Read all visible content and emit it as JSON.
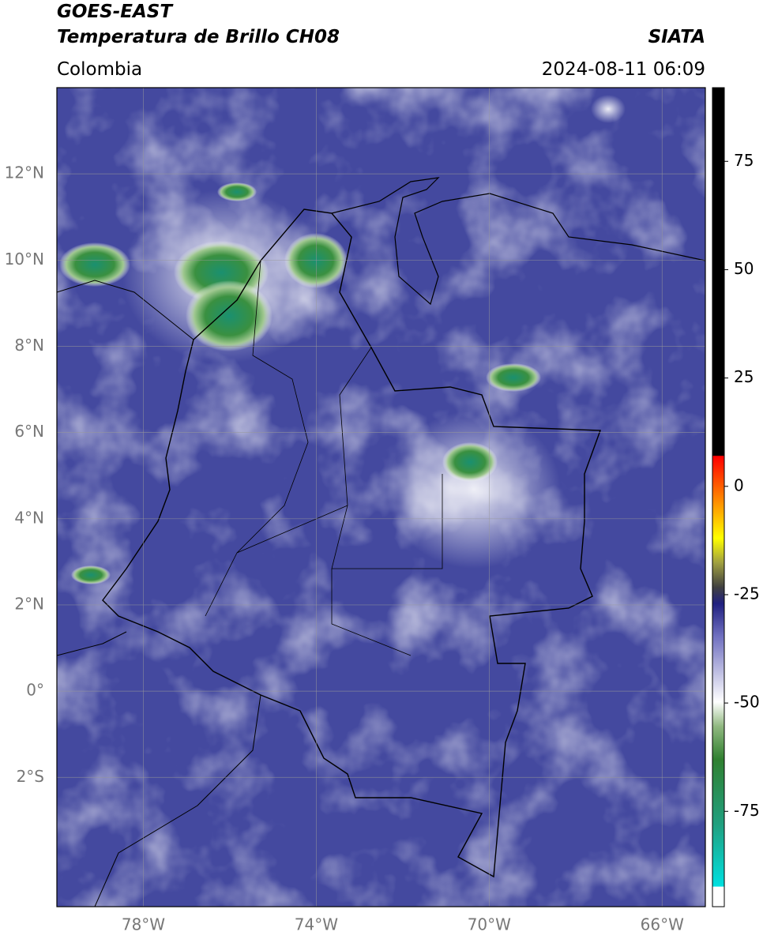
{
  "header": {
    "title": "GOES-EAST",
    "subtitle": "Temperatura de Brillo CH08",
    "source": "SIATA",
    "region": "Colombia",
    "datetime": "2024-08-11 06:09"
  },
  "map": {
    "xlim": [
      -80,
      -65
    ],
    "ylim": [
      -5,
      14
    ],
    "grid": true,
    "xticks": [
      {
        "value": -78,
        "label": "78°W"
      },
      {
        "value": -74,
        "label": "74°W"
      },
      {
        "value": -70,
        "label": "70°W"
      },
      {
        "value": -66,
        "label": "66°W"
      }
    ],
    "yticks": [
      {
        "value": 12,
        "label": "12°N"
      },
      {
        "value": 10,
        "label": "10°N"
      },
      {
        "value": 8,
        "label": "8°N"
      },
      {
        "value": 6,
        "label": "6°N"
      },
      {
        "value": 4,
        "label": "4°N"
      },
      {
        "value": 2,
        "label": "2°N"
      },
      {
        "value": 0,
        "label": "0°"
      },
      {
        "value": -2,
        "label": "2°S"
      }
    ]
  },
  "colorbar": {
    "clim": [
      -97,
      92
    ],
    "ticks": [
      75,
      50,
      25,
      0,
      -25,
      -50,
      -75
    ]
  }
}
